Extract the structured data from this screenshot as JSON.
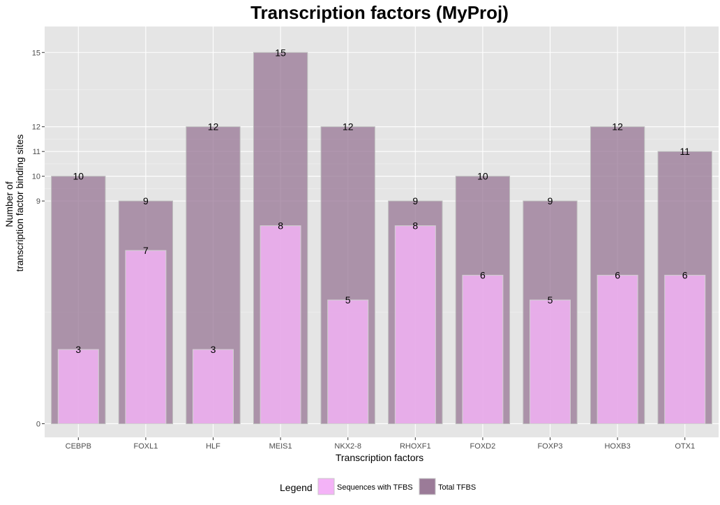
{
  "chart_data": {
    "type": "bar",
    "title": "Transcription factors (MyProj)",
    "xlabel": "Transcription factors",
    "ylabel": [
      "Number of",
      "transcription factor binding sites"
    ],
    "categories": [
      "CEBPB",
      "FOXL1",
      "HLF",
      "MEIS1",
      "NKX2-8",
      "RHOXF1",
      "FOXD2",
      "FOXP3",
      "HOXB3",
      "OTX1"
    ],
    "series": [
      {
        "name": "Total TFBS",
        "color": "#9b7b98",
        "values": [
          10,
          9,
          12,
          15,
          12,
          9,
          10,
          9,
          12,
          11
        ]
      },
      {
        "name": "Sequences with TFBS",
        "color": "#f4b3f7",
        "values": [
          3,
          7,
          3,
          8,
          5,
          8,
          6,
          5,
          6,
          6
        ]
      }
    ],
    "y_ticks": [
      0,
      9,
      10,
      11,
      12,
      15
    ],
    "ylim": [
      -0.55,
      16.05
    ],
    "grid": true,
    "panel_background": "#e5e5e5",
    "legend": {
      "title": "Legend",
      "position": "bottom",
      "items": [
        {
          "label": "Sequences with TFBS",
          "color": "#f4b3f7"
        },
        {
          "label": "Total TFBS",
          "color": "#9b7b98"
        }
      ]
    }
  }
}
